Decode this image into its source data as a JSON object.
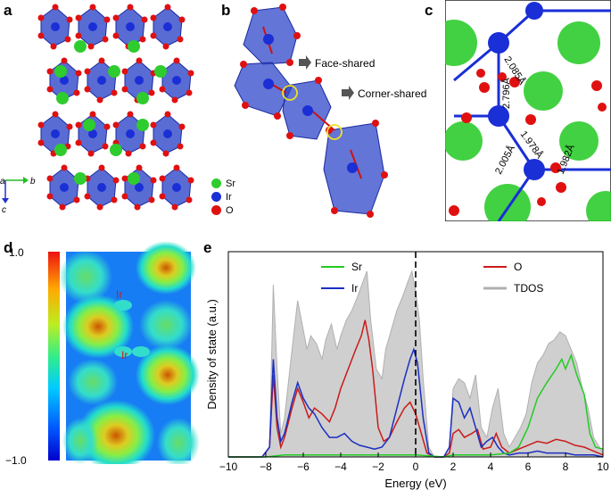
{
  "panels": {
    "a": {
      "label": "a",
      "axes": {
        "a": "a",
        "b": "b",
        "c": "c"
      }
    },
    "b": {
      "label": "b",
      "annotations": {
        "face": "Face-shared",
        "corner": "Corner-shared"
      },
      "legend": [
        {
          "label": "Sr",
          "color": "#2ecc2e"
        },
        {
          "label": "Ir",
          "color": "#1a2fd6"
        },
        {
          "label": "O",
          "color": "#e01010"
        }
      ]
    },
    "c": {
      "label": "c",
      "bonds": [
        "2.085Å",
        "2.796Å",
        "1.978Å",
        "2.005Å",
        "1.982Å"
      ]
    },
    "d": {
      "label": "d",
      "colorbar": {
        "max": "1.0",
        "min": "−1.0"
      },
      "atoms": [
        "Ir",
        "Ir"
      ]
    },
    "e": {
      "label": "e"
    }
  },
  "chart_data": {
    "type": "area",
    "xlabel": "Energy (eV)",
    "ylabel": "Density of state (a.u.)",
    "xlim": [
      -10,
      10
    ],
    "ylim": [
      0,
      1.05
    ],
    "xticks": [
      "−10",
      "−8",
      "−6",
      "−4",
      "−2",
      "0",
      "2",
      "4",
      "6",
      "8",
      "10"
    ],
    "fermi_level": 0,
    "legend": [
      "Sr",
      "Ir",
      "O",
      "TDOS"
    ],
    "series": [
      {
        "name": "TDOS",
        "color": "#b0b0b0",
        "x": [
          -10,
          -8.2,
          -7.8,
          -7.6,
          -7.4,
          -7.2,
          -7.0,
          -6.6,
          -6.3,
          -6.0,
          -5.8,
          -5.6,
          -5.3,
          -5.0,
          -4.8,
          -4.5,
          -4.2,
          -4.0,
          -3.7,
          -3.4,
          -3.1,
          -2.8,
          -2.6,
          -2.4,
          -2.1,
          -1.8,
          -1.6,
          -1.3,
          -1.0,
          -0.7,
          -0.4,
          -0.2,
          0.0,
          0.2,
          0.4,
          0.7,
          1.0,
          1.5,
          1.8,
          2.0,
          2.3,
          2.6,
          2.9,
          3.2,
          3.5,
          3.8,
          4.1,
          4.4,
          4.7,
          5.0,
          5.3,
          5.6,
          5.9,
          6.2,
          6.5,
          6.8,
          7.1,
          7.4,
          7.7,
          8.0,
          8.3,
          8.6,
          8.9,
          9.2,
          9.5,
          10.0
        ],
        "y": [
          0.0,
          0.0,
          0.05,
          0.88,
          0.45,
          0.12,
          0.2,
          0.55,
          0.8,
          0.65,
          0.55,
          0.62,
          0.58,
          0.5,
          0.6,
          0.68,
          0.55,
          0.62,
          0.7,
          0.75,
          0.82,
          0.9,
          0.95,
          0.7,
          0.45,
          0.4,
          0.55,
          0.65,
          0.75,
          0.82,
          0.9,
          0.95,
          0.85,
          0.7,
          0.4,
          0.05,
          0.0,
          0.0,
          0.05,
          0.35,
          0.4,
          0.38,
          0.3,
          0.42,
          0.15,
          0.1,
          0.25,
          0.35,
          0.12,
          0.05,
          0.1,
          0.15,
          0.22,
          0.38,
          0.48,
          0.52,
          0.58,
          0.6,
          0.64,
          0.62,
          0.55,
          0.48,
          0.35,
          0.25,
          0.1,
          0.02
        ]
      },
      {
        "name": "O",
        "color": "#cc1a1a",
        "x": [
          -10,
          -8.2,
          -7.8,
          -7.6,
          -7.4,
          -7.2,
          -7.0,
          -6.6,
          -6.3,
          -6.0,
          -5.7,
          -5.4,
          -5.0,
          -4.6,
          -4.3,
          -4.0,
          -3.6,
          -3.2,
          -2.9,
          -2.7,
          -2.5,
          -2.3,
          -2.0,
          -1.7,
          -1.4,
          -1.0,
          -0.6,
          -0.3,
          0.0,
          0.3,
          0.6,
          1.0,
          1.5,
          1.8,
          2.0,
          2.3,
          2.6,
          3.0,
          3.3,
          3.6,
          4.0,
          4.3,
          4.6,
          5.0,
          5.5,
          6.0,
          6.5,
          7.0,
          7.5,
          8.0,
          8.5,
          9.0,
          9.5,
          10.0
        ],
        "y": [
          0.0,
          0.0,
          0.05,
          0.42,
          0.15,
          0.05,
          0.1,
          0.25,
          0.35,
          0.28,
          0.2,
          0.25,
          0.22,
          0.18,
          0.25,
          0.35,
          0.45,
          0.55,
          0.62,
          0.7,
          0.6,
          0.45,
          0.15,
          0.08,
          0.1,
          0.18,
          0.25,
          0.28,
          0.22,
          0.12,
          0.02,
          0.0,
          0.0,
          0.02,
          0.12,
          0.14,
          0.1,
          0.12,
          0.14,
          0.04,
          0.05,
          0.12,
          0.05,
          0.02,
          0.04,
          0.06,
          0.08,
          0.07,
          0.09,
          0.08,
          0.06,
          0.05,
          0.03,
          0.01
        ]
      },
      {
        "name": "Ir",
        "color": "#1a2fc2",
        "x": [
          -10,
          -8.2,
          -7.8,
          -7.6,
          -7.4,
          -7.2,
          -7.0,
          -6.6,
          -6.3,
          -6.0,
          -5.7,
          -5.4,
          -5.0,
          -4.6,
          -4.2,
          -3.8,
          -3.4,
          -3.0,
          -2.6,
          -2.2,
          -1.8,
          -1.4,
          -1.0,
          -0.6,
          -0.3,
          -0.1,
          0.1,
          0.4,
          0.7,
          1.0,
          1.5,
          1.8,
          2.0,
          2.3,
          2.6,
          2.9,
          3.2,
          3.5,
          3.8,
          4.1,
          4.4,
          4.7,
          5.0,
          5.5,
          6.0,
          6.5,
          7.0,
          7.5,
          8.0,
          8.5,
          9.0,
          9.5,
          10.0
        ],
        "y": [
          0.0,
          0.0,
          0.05,
          0.5,
          0.2,
          0.08,
          0.12,
          0.28,
          0.38,
          0.3,
          0.25,
          0.22,
          0.15,
          0.1,
          0.1,
          0.12,
          0.08,
          0.06,
          0.05,
          0.04,
          0.05,
          0.1,
          0.25,
          0.4,
          0.5,
          0.55,
          0.48,
          0.2,
          0.02,
          0.0,
          0.0,
          0.05,
          0.3,
          0.28,
          0.2,
          0.25,
          0.15,
          0.05,
          0.08,
          0.1,
          0.05,
          0.02,
          0.01,
          0.02,
          0.02,
          0.03,
          0.02,
          0.02,
          0.02,
          0.01,
          0.01,
          0.01,
          0.0
        ]
      },
      {
        "name": "Sr",
        "color": "#22cc22",
        "x": [
          -10,
          -8.0,
          -7.0,
          -6.0,
          -4.0,
          -2.0,
          0.0,
          1.5,
          2.0,
          3.0,
          4.0,
          5.0,
          5.5,
          6.0,
          6.5,
          7.0,
          7.5,
          7.8,
          8.0,
          8.3,
          8.6,
          9.0,
          9.3,
          9.6,
          10.0
        ],
        "y": [
          0.0,
          0.0,
          0.01,
          0.01,
          0.01,
          0.01,
          0.01,
          0.0,
          0.01,
          0.01,
          0.01,
          0.02,
          0.05,
          0.15,
          0.3,
          0.38,
          0.45,
          0.5,
          0.45,
          0.52,
          0.42,
          0.32,
          0.12,
          0.05,
          0.04
        ]
      }
    ]
  }
}
